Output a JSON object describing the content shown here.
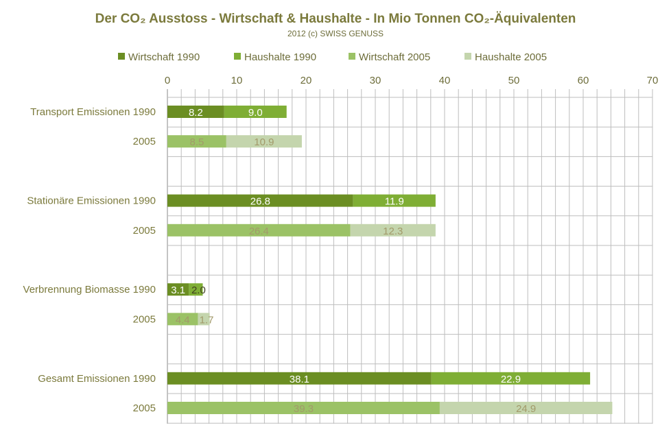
{
  "chart_data": {
    "type": "bar",
    "orientation": "horizontal",
    "stacked": true,
    "title": "Der CO₂ Ausstoss - Wirtschaft & Haushalte - In Mio Tonnen CO₂-Äquivalenten",
    "subtitle": "2012 (c) SWISS GENUSS",
    "xlim": [
      0,
      70
    ],
    "x_ticks": [
      0,
      10,
      20,
      30,
      40,
      50,
      60,
      70
    ],
    "x_axis_position": "top",
    "legend_position": "top",
    "grid": true,
    "categories": [
      "Transport Emissionen 1990",
      "2005",
      "",
      "Stationäre Emissionen 1990",
      "2005",
      "",
      "Verbrennung Biomasse 1990",
      "2005",
      "",
      "Gesamt Emissionen 1990",
      "2005"
    ],
    "series": [
      {
        "name": "Wirtschaft 1990",
        "color": "#6b8e23"
      },
      {
        "name": "Haushalte 1990",
        "color": "#7fae35"
      },
      {
        "name": "Wirtschaft 2005",
        "color": "#9bc266"
      },
      {
        "name": "Haushalte 2005",
        "color": "#c4d5ad"
      }
    ],
    "bars": [
      {
        "category_index": 0,
        "segments": [
          {
            "series": 0,
            "value": 8.2,
            "label": "8.2"
          },
          {
            "series": 1,
            "value": 9.0,
            "label": "9.0"
          }
        ]
      },
      {
        "category_index": 1,
        "segments": [
          {
            "series": 2,
            "value": 8.5,
            "label": "8.5"
          },
          {
            "series": 3,
            "value": 10.9,
            "label": "10.9"
          }
        ]
      },
      {
        "category_index": 3,
        "segments": [
          {
            "series": 0,
            "value": 26.8,
            "label": "26.8"
          },
          {
            "series": 1,
            "value": 11.9,
            "label": "11.9"
          }
        ]
      },
      {
        "category_index": 4,
        "segments": [
          {
            "series": 2,
            "value": 26.4,
            "label": "26.4"
          },
          {
            "series": 3,
            "value": 12.3,
            "label": "12.3"
          }
        ]
      },
      {
        "category_index": 6,
        "segments": [
          {
            "series": 0,
            "value": 3.1,
            "label": "3.1"
          },
          {
            "series": 1,
            "value": 2.0,
            "label": "2.0"
          }
        ]
      },
      {
        "category_index": 7,
        "segments": [
          {
            "series": 2,
            "value": 4.4,
            "label": "4.4"
          },
          {
            "series": 3,
            "value": 1.7,
            "label": "1.7"
          }
        ]
      },
      {
        "category_index": 9,
        "segments": [
          {
            "series": 0,
            "value": 38.1,
            "label": "38.1"
          },
          {
            "series": 1,
            "value": 22.9,
            "label": "22.9"
          }
        ]
      },
      {
        "category_index": 10,
        "segments": [
          {
            "series": 2,
            "value": 39.3,
            "label": "39.3"
          },
          {
            "series": 3,
            "value": 24.9,
            "label": "24.9"
          }
        ]
      }
    ]
  }
}
